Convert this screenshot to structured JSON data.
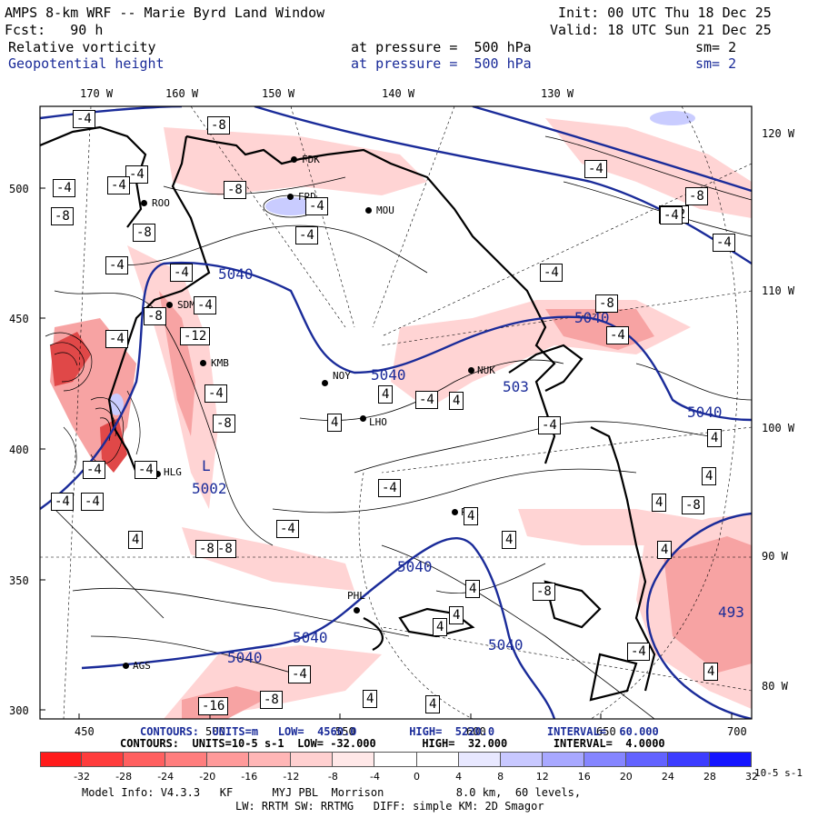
{
  "header": {
    "title": "AMPS 8-km WRF -- Marie Byrd Land Window",
    "init": "Init: 00 UTC Thu 18 Dec 25",
    "fcst": "Fcst:   90 h",
    "valid": "Valid: 18 UTC Sun 21 Dec 25",
    "field1_name": "Relative vorticity",
    "field1_level": "at pressure =  500 hPa",
    "field1_sm": "sm= 2",
    "field2_name": "Geopotential height",
    "field2_level": "at pressure =  500 hPa",
    "field2_sm": "sm= 2"
  },
  "axes": {
    "top_lon": [
      "170 W",
      "160 W",
      "150 W",
      "140 W",
      "130 W"
    ],
    "right_lon": [
      "120 W",
      "110 W",
      "100 W",
      "90 W",
      "80 W"
    ],
    "left_y": [
      "500",
      "450",
      "400",
      "350",
      "300"
    ],
    "bottom_x": [
      "450",
      "500",
      "550",
      "600",
      "650",
      "700"
    ]
  },
  "stations": [
    {
      "id": "FDK"
    },
    {
      "id": "FRD"
    },
    {
      "id": "MOU"
    },
    {
      "id": "ROO"
    },
    {
      "id": "SDM"
    },
    {
      "id": "KMB"
    },
    {
      "id": "NOY"
    },
    {
      "id": "NUK"
    },
    {
      "id": "LHO"
    },
    {
      "id": "HLG"
    },
    {
      "id": "PNE"
    },
    {
      "id": "PHL"
    },
    {
      "id": "AGS"
    }
  ],
  "height_labels": [
    "5040",
    "5040",
    "5040",
    "5040",
    "5040",
    "5040",
    "5040",
    "5040",
    "503",
    "5002",
    "493"
  ],
  "vort_labels": [
    "-4",
    "-8",
    "-4",
    "-4",
    "-8",
    "-4",
    "-4",
    "-8",
    "-12",
    "-4",
    "-4",
    "-8",
    "-4",
    "-4",
    "-8",
    "-4",
    "-4",
    "-8",
    "-4",
    "-8",
    "-12",
    "-4",
    "-4",
    "4",
    "-4",
    "-4",
    "4",
    "-4",
    "-4",
    "-8",
    "-4",
    "4",
    "-4",
    "4",
    "4",
    "-4",
    "-8",
    "-16",
    "-8",
    "4",
    "4",
    "-4",
    "4",
    "4",
    "4",
    "-8",
    "-8",
    "4",
    "-4",
    "-4",
    "4",
    "4",
    "-4",
    "-4",
    "-8",
    "4",
    "4",
    "4"
  ],
  "footer": {
    "contours_height": "CONTOURS:  UNITS=m   LOW=  4560.0        HIGH=  5220.0        INTERVAL=  60.000",
    "contours_vort": "CONTOURS:  UNITS=10-5 s-1  LOW= -32.000       HIGH=  32.000       INTERVAL=  4.0000",
    "colorbar_labels": [
      "-32",
      "-28",
      "-24",
      "-20",
      "-16",
      "-12",
      "-8",
      "-4",
      "0",
      "4",
      "8",
      "12",
      "16",
      "20",
      "24",
      "28",
      "32"
    ],
    "colorbar_unit": "10-5 s-1",
    "colorbar_colors": [
      "#ff1a1a",
      "#ff3c3c",
      "#ff5f5f",
      "#ff7d7d",
      "#ff9a9a",
      "#ffb6b6",
      "#ffd0d0",
      "#ffe8e8",
      "#ffffff",
      "#ffffff",
      "#e8e8ff",
      "#c8c8ff",
      "#a8a8ff",
      "#8585ff",
      "#6262ff",
      "#3c3cff",
      "#1414ff"
    ],
    "model_info": "Model Info: V4.3.3   KF      MYJ PBL  Morrison           8.0 km,  60 levels,",
    "physics": "LW: RRTM SW: RRTMG   DIFF: simple KM: 2D Smagor"
  }
}
